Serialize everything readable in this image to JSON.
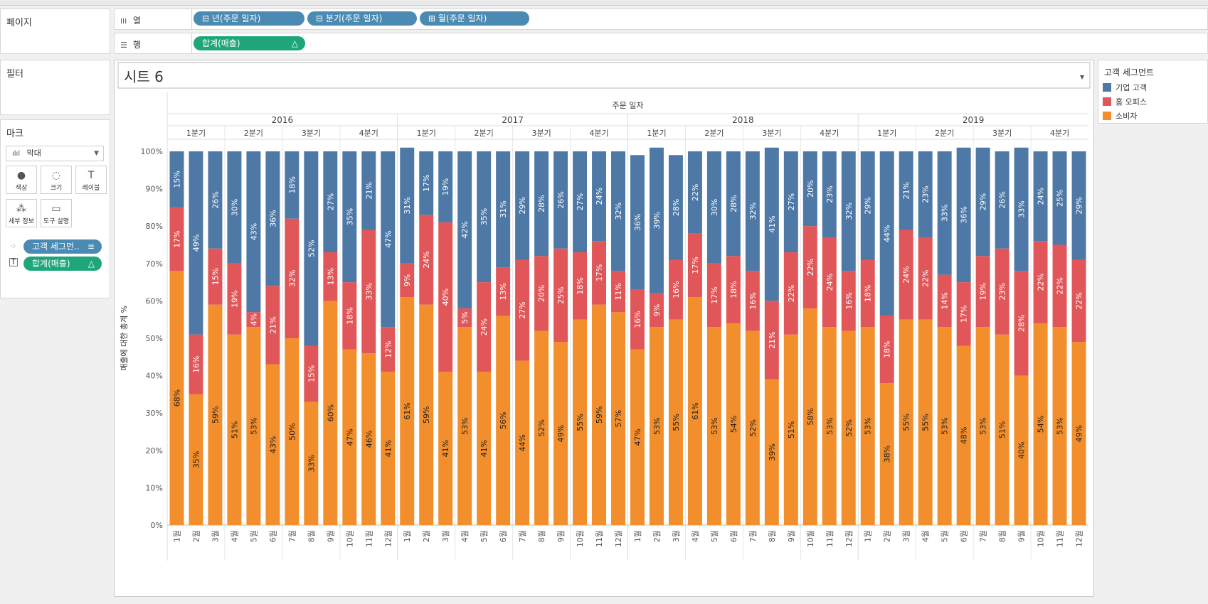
{
  "shelves": {
    "pages_label": "페이지",
    "columns_label": "열",
    "rows_label": "행",
    "column_pills": [
      "⊟ 년(주문 일자)",
      "⊟ 분기(주문 일자)",
      "⊞ 월(주문 일자)"
    ],
    "row_pill": "합계(매출)",
    "row_pill_icon": "△"
  },
  "filters": {
    "title": "필터"
  },
  "marks": {
    "title": "마크",
    "type": "막대",
    "buttons": {
      "color": "색상",
      "size": "크기",
      "label": "레이블",
      "detail": "세부 정보",
      "tooltip": "도구 설명"
    },
    "pill_segment": "고객 세그먼..",
    "pill_sales": "합계(매출)",
    "pill_sales_icon": "△"
  },
  "sheet": {
    "title": "시트 6",
    "dropdown_icon": "▾"
  },
  "legend": {
    "title": "고객 세그먼트",
    "items": [
      {
        "name": "기업 고객",
        "color": "#4e79a7"
      },
      {
        "name": "홈 오피스",
        "color": "#e15759"
      },
      {
        "name": "소비자",
        "color": "#f28e2b"
      }
    ]
  },
  "chart_data": {
    "type": "bar",
    "stacked": "percent",
    "top_label": "주문 일자",
    "ylabel": "매출에 대한 총계 %",
    "ylim": [
      0,
      100
    ],
    "y_ticks": [
      "0%",
      "10%",
      "20%",
      "30%",
      "40%",
      "50%",
      "60%",
      "70%",
      "80%",
      "90%",
      "100%"
    ],
    "years": [
      "2016",
      "2017",
      "2018",
      "2019"
    ],
    "quarters": [
      "1분기",
      "2분기",
      "3분기",
      "4분기"
    ],
    "months": [
      "1월",
      "2월",
      "3월",
      "4월",
      "5월",
      "6월",
      "7월",
      "8월",
      "9월",
      "10월",
      "11월",
      "12월"
    ],
    "series": [
      {
        "name": "소비자",
        "color": "#f28e2b",
        "values": [
          68,
          35,
          59,
          51,
          53,
          43,
          50,
          33,
          60,
          47,
          46,
          41,
          61,
          59,
          41,
          53,
          41,
          56,
          44,
          52,
          49,
          55,
          59,
          57,
          47,
          53,
          55,
          61,
          53,
          54,
          52,
          39,
          51,
          58,
          53,
          52,
          53,
          38,
          55,
          55,
          53,
          48,
          53,
          51,
          40,
          54,
          53,
          49
        ]
      },
      {
        "name": "홈 오피스",
        "color": "#e15759",
        "values": [
          17,
          16,
          15,
          19,
          4,
          21,
          32,
          15,
          13,
          18,
          33,
          12,
          9,
          24,
          40,
          5,
          24,
          13,
          27,
          20,
          25,
          18,
          17,
          11,
          16,
          9,
          16,
          17,
          17,
          18,
          16,
          21,
          22,
          22,
          24,
          16,
          18,
          18,
          24,
          22,
          14,
          17,
          19,
          23,
          28,
          22,
          22,
          22
        ]
      },
      {
        "name": "기업 고객",
        "color": "#4e79a7",
        "values": [
          15,
          49,
          26,
          30,
          43,
          36,
          18,
          52,
          27,
          35,
          21,
          47,
          31,
          17,
          19,
          42,
          35,
          31,
          29,
          28,
          26,
          27,
          24,
          32,
          36,
          39,
          28,
          22,
          30,
          28,
          32,
          41,
          27,
          20,
          23,
          32,
          29,
          44,
          21,
          23,
          33,
          36,
          29,
          26,
          33,
          24,
          25,
          29
        ]
      }
    ]
  }
}
